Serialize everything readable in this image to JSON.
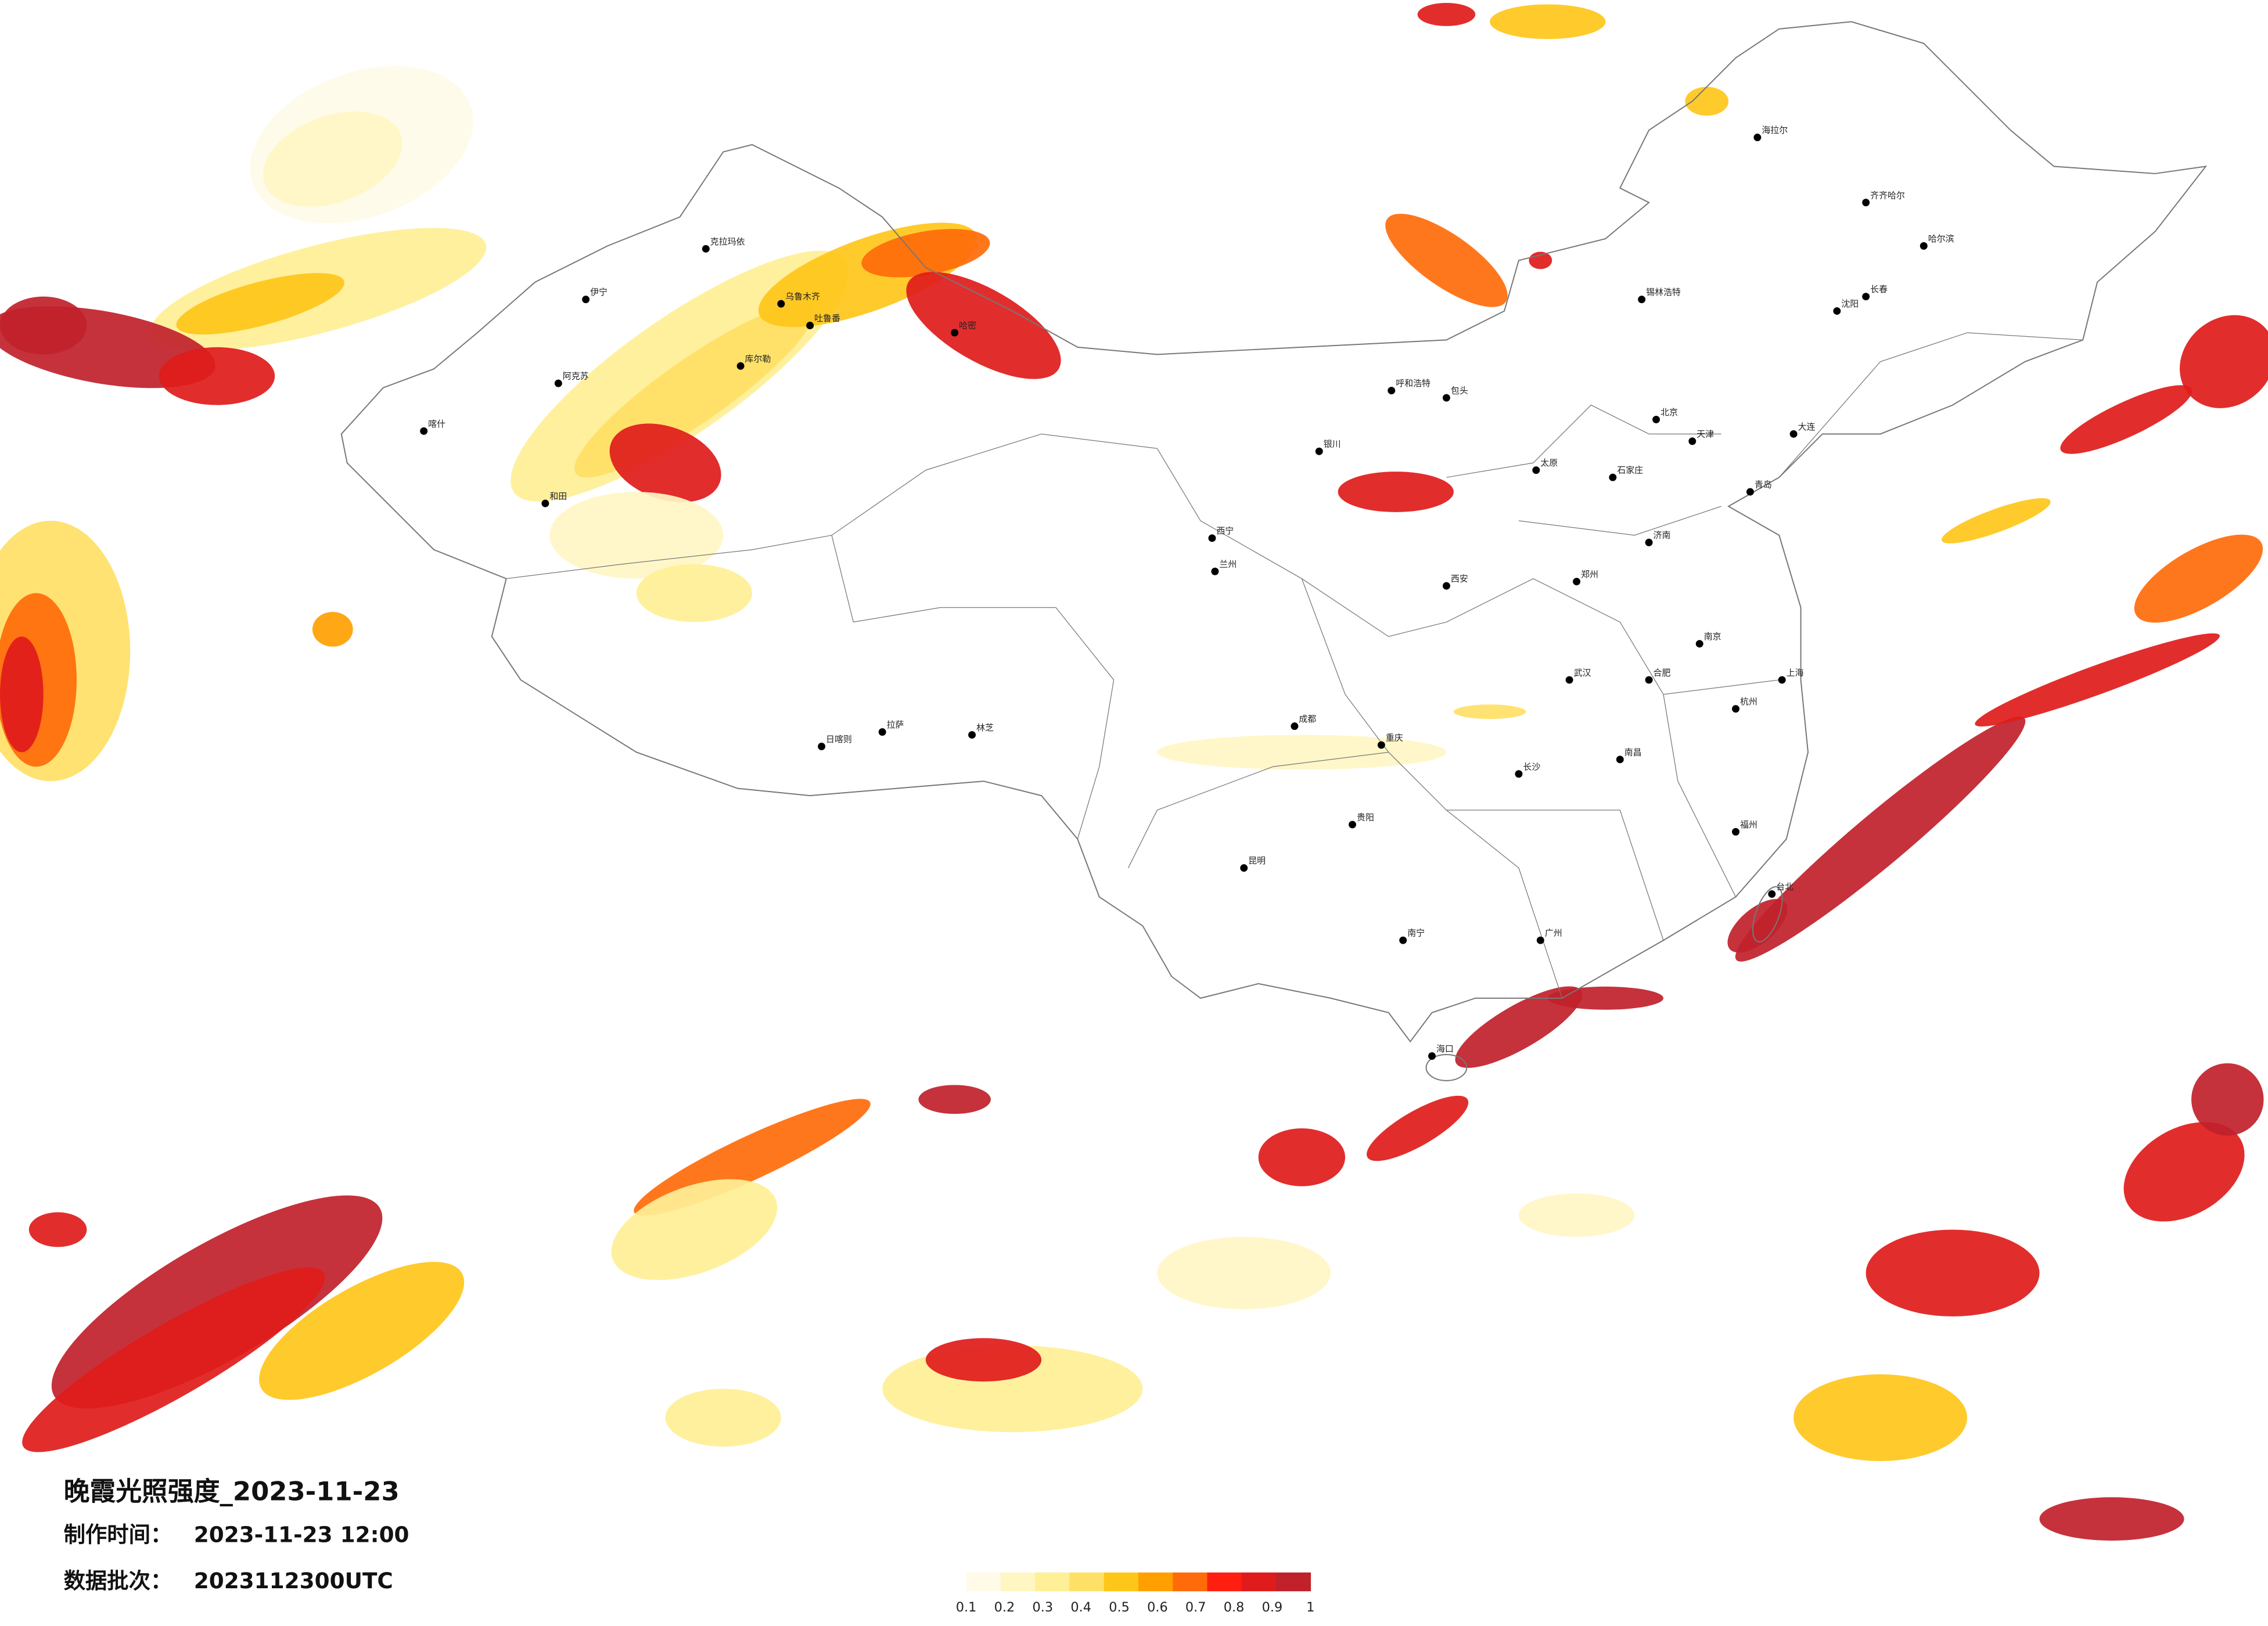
{
  "header": {
    "title": "晚霞光照强度_2023-11-23",
    "made_label": "制作时间：",
    "made_value": "2023-11-23 12:00",
    "batch_label": "数据批次：",
    "batch_value": "2023112300UTC"
  },
  "legend": {
    "ticks": [
      0.1,
      0.2,
      0.3,
      0.4,
      0.5,
      0.6,
      0.7,
      0.8,
      0.9,
      1
    ],
    "colors": [
      "#fffbe8",
      "#fff6c4",
      "#ffef96",
      "#ffe066",
      "#ffc61a",
      "#ffa000",
      "#ff6b0a",
      "#ff1f10",
      "#e01b1b",
      "#c0212b"
    ]
  },
  "cities": [
    "乌鲁木齐",
    "克拉玛依",
    "伊宁",
    "阿克苏",
    "和田",
    "喀什",
    "哈密",
    "吐鲁番",
    "库尔勒",
    "拉萨",
    "日喀则",
    "林芝",
    "西宁",
    "兰州",
    "银川",
    "呼和浩特",
    "包头",
    "北京",
    "天津",
    "石家庄",
    "太原",
    "济南",
    "郑州",
    "西安",
    "成都",
    "重庆",
    "贵阳",
    "昆明",
    "南宁",
    "广州",
    "长沙",
    "武汉",
    "南昌",
    "杭州",
    "南京",
    "合肥",
    "福州",
    "沈阳",
    "长春",
    "哈尔滨",
    "齐齐哈尔",
    "海拉尔",
    "锡林浩特",
    "大连",
    "青岛",
    "上海",
    "台北",
    "海口"
  ]
}
